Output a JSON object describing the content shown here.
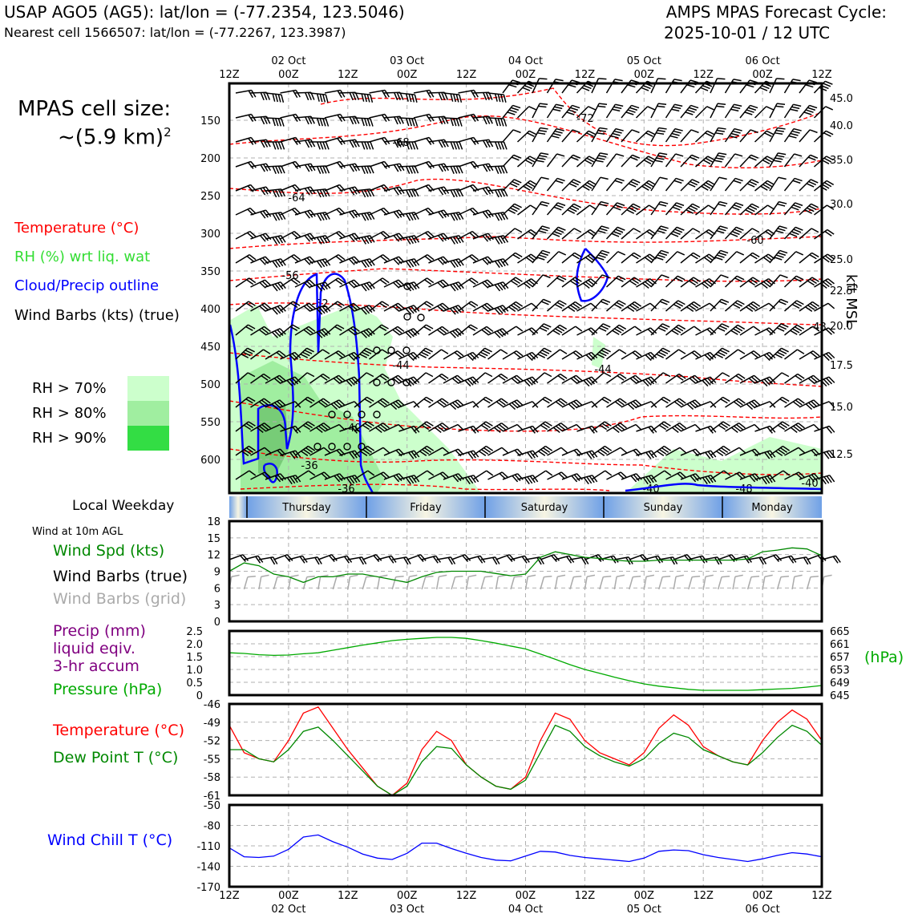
{
  "header": {
    "title_left": "USAP AGO5 (AG5): lat/lon = (-77.2354, 123.5046)",
    "subtitle_left": "Nearest cell 1566507: lat/lon = (-77.2267, 123.3987)",
    "title_right_line1": "AMPS MPAS Forecast Cycle:",
    "title_right_line2": "2025-10-01 / 12 UTC"
  },
  "side": {
    "cell_size_line1": "MPAS cell size:",
    "cell_size_line2": "~(5.9 km)",
    "cell_size_sup": "2",
    "legend_temp": "Temperature (°C)",
    "legend_rh": "RH (%) wrt liq. wat",
    "legend_cloud": "Cloud/Precip outline",
    "legend_wind": "Wind Barbs (kts) (true)",
    "rh70": "RH > 70%",
    "rh80": "RH > 80%",
    "rh90": "RH > 90%",
    "local_weekday": "Local Weekday",
    "wind10m": "Wind at 10m AGL",
    "wind_spd": "Wind Spd (kts)",
    "wind_barbs_true": "Wind Barbs (true)",
    "wind_barbs_grid": "Wind Barbs (grid)",
    "precip1": "Precip (mm)",
    "precip2": "liquid eqiv.",
    "precip3": "3-hr accum",
    "pressure": "Pressure (hPa)",
    "temperature": "Temperature (°C)",
    "dewpoint": "Dew Point T (°C)",
    "windchill": "Wind Chill T (°C)",
    "hpa_unit": "(hPa)",
    "kft": "kft MSL"
  },
  "colors": {
    "temp": "#ff0000",
    "rh_label": "#33dd33",
    "cloud": "#0000ff",
    "rh70": "#ccffcc",
    "rh80": "#a0eea0",
    "rh90": "#33dd44",
    "wind_spd": "#008800",
    "barb_grid": "#aaaaaa",
    "precip": "#800080",
    "pressure": "#00aa00",
    "pressure_axis": "#00aa00",
    "dewpoint": "#008800",
    "windchill": "#0000ff"
  },
  "time_axis": {
    "top_hours": [
      "12Z",
      "00Z",
      "12Z",
      "00Z",
      "12Z",
      "00Z",
      "12Z",
      "00Z",
      "12Z",
      "00Z",
      "12Z"
    ],
    "dates": [
      "02 Oct",
      "03 Oct",
      "04 Oct",
      "05 Oct",
      "06 Oct"
    ],
    "bottom_hours": [
      "12Z",
      "00Z",
      "12Z",
      "00Z",
      "12Z",
      "00Z",
      "12Z",
      "00Z",
      "12Z",
      "00Z",
      "12Z"
    ]
  },
  "weekdays": [
    "Thursday",
    "Friday",
    "Saturday",
    "Sunday",
    "Monday"
  ],
  "chart_data": [
    {
      "type": "heatmap",
      "name": "profile",
      "y_pressure_ticks": [
        "150",
        "200",
        "250",
        "300",
        "350",
        "400",
        "450",
        "500",
        "550",
        "600"
      ],
      "y_height_ticks": [
        "45.0",
        "40.0",
        "35.0",
        "30.0",
        "25.0",
        "22.5",
        "20.0",
        "17.5",
        "15.0",
        "12.5"
      ],
      "temp_contour_labels": [
        "-72",
        "-68",
        "-64",
        "-60",
        "-56",
        "-52",
        "-48",
        "-44",
        "-44",
        "-40",
        "-36",
        "-36",
        "-40",
        "-48",
        "-40",
        "-40"
      ],
      "grid": true
    },
    {
      "type": "line",
      "name": "wind10m",
      "ylim": [
        0,
        18
      ],
      "yticks": [
        "0",
        "3",
        "6",
        "9",
        "12",
        "15",
        "18"
      ],
      "x": [
        0,
        3,
        6,
        9,
        12,
        15,
        18,
        21,
        24,
        27,
        30,
        33,
        36,
        39,
        42,
        45,
        48,
        51,
        54,
        57,
        60,
        63,
        66,
        69,
        72,
        75,
        78,
        81,
        84,
        87,
        90,
        93,
        96,
        99,
        102,
        105,
        108,
        111,
        114,
        117,
        120
      ],
      "series": [
        {
          "name": "Wind Spd (kts)",
          "values": [
            9,
            10.5,
            10,
            8.5,
            8,
            7,
            8,
            8,
            8.5,
            8.5,
            8,
            7.5,
            7,
            8,
            8.8,
            9,
            9,
            9,
            8.6,
            8.2,
            8.5,
            11.5,
            12.5,
            12,
            11.5,
            11.3,
            11,
            10.8,
            10.8,
            11,
            11,
            11,
            11,
            11,
            11,
            11.2,
            12.5,
            12.8,
            13.2,
            13,
            11.8
          ]
        }
      ]
    },
    {
      "type": "line",
      "name": "precip_pressure",
      "ylim": [
        0,
        2.5
      ],
      "yticks": [
        "0",
        "0.5",
        "1.0",
        "1.5",
        "2.0",
        "2.5"
      ],
      "y2lim": [
        645,
        665
      ],
      "y2ticks": [
        "645",
        "649",
        "653",
        "657",
        "661",
        "665"
      ],
      "x": [
        0,
        3,
        6,
        9,
        12,
        15,
        18,
        21,
        24,
        27,
        30,
        33,
        36,
        39,
        42,
        45,
        48,
        51,
        54,
        57,
        60,
        63,
        66,
        69,
        72,
        75,
        78,
        81,
        84,
        87,
        90,
        93,
        96,
        99,
        102,
        105,
        108,
        111,
        114,
        117,
        120
      ],
      "series": [
        {
          "name": "Pressure (hPa)",
          "values": [
            658.2,
            658,
            657.6,
            657.4,
            657.5,
            657.9,
            658.2,
            659,
            659.8,
            660.6,
            661.3,
            662,
            662.4,
            662.7,
            663,
            663,
            662.7,
            662,
            661.2,
            660.3,
            659.4,
            657.8,
            656.2,
            654.5,
            653,
            651.8,
            650.6,
            649.5,
            648.5,
            647.8,
            647.3,
            646.8,
            646.5,
            646.5,
            646.5,
            646.5,
            646.7,
            646.9,
            647.1,
            647.5,
            648
          ]
        },
        {
          "name": "Precip (mm)",
          "values": [
            0,
            0,
            0,
            0,
            0,
            0,
            0,
            0,
            0,
            0,
            0,
            0,
            0,
            0,
            0,
            0,
            0,
            0,
            0,
            0,
            0,
            0,
            0,
            0,
            0,
            0,
            0,
            0,
            0,
            0,
            0,
            0,
            0,
            0,
            0,
            0,
            0,
            0,
            0,
            0,
            0
          ]
        }
      ]
    },
    {
      "type": "line",
      "name": "temperature",
      "ylim": [
        -61,
        -46
      ],
      "yticks": [
        "-61",
        "-58",
        "-55",
        "-52",
        "-49",
        "-46"
      ],
      "x": [
        0,
        3,
        6,
        9,
        12,
        15,
        18,
        21,
        24,
        27,
        30,
        33,
        36,
        39,
        42,
        45,
        48,
        51,
        54,
        57,
        60,
        63,
        66,
        69,
        72,
        75,
        78,
        81,
        84,
        87,
        90,
        93,
        96,
        99,
        102,
        105,
        108,
        111,
        114,
        117,
        120
      ],
      "series": [
        {
          "name": "Temperature (°C)",
          "values": [
            -49.5,
            -54,
            -55,
            -55.5,
            -52,
            -47.5,
            -46.5,
            -50,
            -53.5,
            -56.5,
            -59.5,
            -61,
            -59,
            -53.5,
            -50.5,
            -52,
            -56,
            -58,
            -59.5,
            -60,
            -58,
            -52,
            -47.5,
            -48.5,
            -52,
            -54,
            -55,
            -56,
            -54,
            -50,
            -47.8,
            -49.5,
            -53,
            -54.5,
            -55.5,
            -56,
            -52,
            -49,
            -47,
            -48.5,
            -52
          ]
        },
        {
          "name": "Dew Point T (°C)",
          "values": [
            -53.5,
            -53.5,
            -55,
            -55.5,
            -53.5,
            -50.5,
            -49.8,
            -52,
            -54.5,
            -57,
            -59.5,
            -61,
            -59.5,
            -55.5,
            -53,
            -53.3,
            -56,
            -58,
            -59.5,
            -60,
            -58.5,
            -54,
            -49.5,
            -50.5,
            -53,
            -54.5,
            -55.5,
            -56.2,
            -55,
            -52.5,
            -50.8,
            -51.5,
            -53.5,
            -54.5,
            -55.5,
            -56,
            -54,
            -51.5,
            -49.5,
            -50.5,
            -52.8
          ]
        }
      ]
    },
    {
      "type": "line",
      "name": "windchill",
      "ylim": [
        -170,
        -50
      ],
      "yticks": [
        "-170",
        "-140",
        "-110",
        "-80",
        "-50"
      ],
      "x": [
        0,
        3,
        6,
        9,
        12,
        15,
        18,
        21,
        24,
        27,
        30,
        33,
        36,
        39,
        42,
        45,
        48,
        51,
        54,
        57,
        60,
        63,
        66,
        69,
        72,
        75,
        78,
        81,
        84,
        87,
        90,
        93,
        96,
        99,
        102,
        105,
        108,
        111,
        114,
        117,
        120
      ],
      "series": [
        {
          "name": "Wind Chill T (°C)",
          "values": [
            -113,
            -126,
            -127,
            -125,
            -115,
            -97,
            -94,
            -104,
            -112,
            -122,
            -128,
            -130,
            -121,
            -106,
            -106,
            -114,
            -121,
            -127,
            -131,
            -132,
            -125,
            -118,
            -119,
            -124,
            -127,
            -129,
            -131,
            -133,
            -128,
            -118,
            -116,
            -117,
            -123,
            -127,
            -130,
            -133,
            -129,
            -124,
            -120,
            -122,
            -126
          ]
        }
      ]
    }
  ]
}
